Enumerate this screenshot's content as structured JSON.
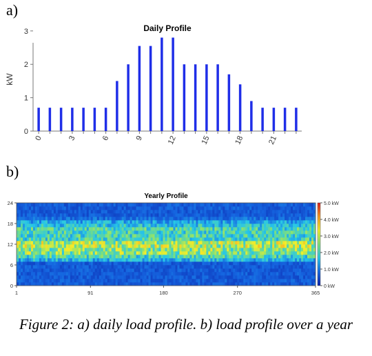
{
  "panel_a_label": "a)",
  "panel_b_label": "b)",
  "caption": "Figure 2: a) daily load profile.  b) load profile over a year",
  "chart_data": [
    {
      "type": "bar",
      "title": "Daily Profile",
      "ylabel": "kW",
      "xlabel": "",
      "x": [
        0,
        1,
        2,
        3,
        4,
        5,
        6,
        7,
        8,
        9,
        10,
        11,
        12,
        13,
        14,
        15,
        16,
        17,
        18,
        19,
        20,
        21,
        22,
        23
      ],
      "values": [
        0.7,
        0.7,
        0.7,
        0.7,
        0.7,
        0.7,
        0.7,
        1.5,
        2.0,
        2.55,
        2.55,
        2.8,
        2.8,
        2.0,
        2.0,
        2.0,
        2.0,
        1.7,
        1.4,
        0.9,
        0.7,
        0.7,
        0.7,
        0.7
      ],
      "xticks": [
        "0",
        "3",
        "6",
        "9",
        "12",
        "15",
        "18",
        "21"
      ],
      "yticks": [
        "0",
        "1",
        "2",
        "3"
      ],
      "ylim": [
        0,
        3.1
      ],
      "color": "#1f2ee8",
      "grid": false
    },
    {
      "type": "heatmap",
      "title": "Yearly Profile",
      "xlabel": "",
      "ylabel": "",
      "xticks": [
        "1",
        "91",
        "180",
        "270",
        "365"
      ],
      "yticks": [
        "0",
        "6",
        "12",
        "18",
        "24"
      ],
      "xlim": [
        1,
        365
      ],
      "ylim": [
        0,
        24
      ],
      "colorbar": {
        "labels": [
          "5.0 kW",
          "4.0 kW",
          "3.0 kW",
          "2.0 kW",
          "1.0 kW",
          "0 kW"
        ],
        "range": [
          0,
          5.0
        ],
        "colors": [
          "#0b1fa8",
          "#1565e0",
          "#26c6e8",
          "#7fe07a",
          "#f2ee2a",
          "#f59a1f",
          "#d81c1c"
        ]
      },
      "hourly_mean_kw": [
        0.7,
        0.7,
        0.7,
        0.7,
        0.7,
        0.7,
        0.7,
        1.5,
        2.0,
        2.55,
        2.55,
        2.8,
        2.8,
        2.0,
        2.0,
        2.0,
        2.0,
        1.7,
        1.4,
        0.9,
        0.7,
        0.7,
        0.7,
        0.7
      ]
    }
  ]
}
